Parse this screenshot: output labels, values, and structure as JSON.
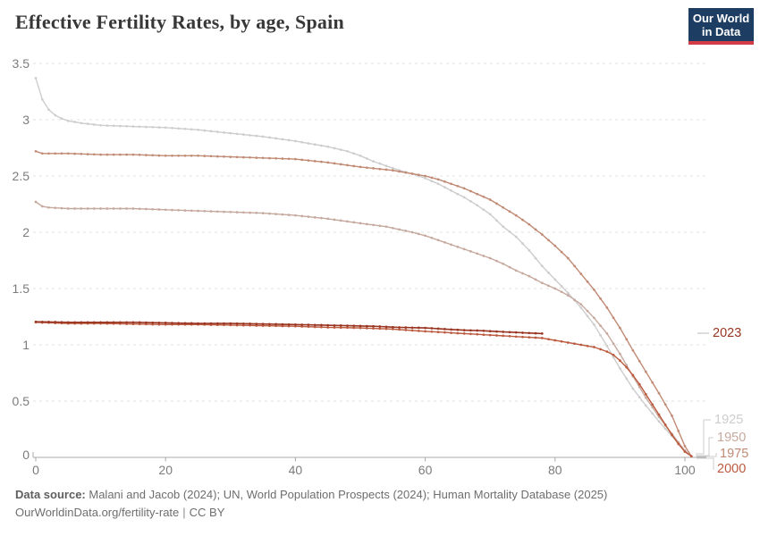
{
  "header": {
    "logo": {
      "line1": "Our World",
      "line2": "in Data"
    }
  },
  "chart_data": {
    "type": "line",
    "title": "Effective Fertility Rates, by age, Spain",
    "xlabel": "",
    "ylabel": "",
    "xlim": [
      0,
      103
    ],
    "ylim": [
      0,
      3.5
    ],
    "x_ticks": [
      0,
      20,
      40,
      60,
      80,
      100
    ],
    "y_ticks": [
      0,
      0.5,
      1,
      1.5,
      2,
      2.5,
      3,
      3.5
    ],
    "grid": "horizontal-dashed",
    "legend_position": "line-end-labels-right",
    "series": [
      {
        "name": "1925",
        "color": "#cdcdcd",
        "points": [
          [
            0,
            3.37
          ],
          [
            1,
            3.18
          ],
          [
            2,
            3.09
          ],
          [
            3,
            3.04
          ],
          [
            4,
            3.01
          ],
          [
            5,
            2.99
          ],
          [
            7,
            2.97
          ],
          [
            10,
            2.95
          ],
          [
            15,
            2.94
          ],
          [
            20,
            2.93
          ],
          [
            25,
            2.91
          ],
          [
            30,
            2.88
          ],
          [
            35,
            2.85
          ],
          [
            40,
            2.81
          ],
          [
            45,
            2.76
          ],
          [
            48,
            2.72
          ],
          [
            50,
            2.68
          ],
          [
            52,
            2.63
          ],
          [
            54,
            2.59
          ],
          [
            56,
            2.55
          ],
          [
            58,
            2.52
          ],
          [
            60,
            2.48
          ],
          [
            62,
            2.43
          ],
          [
            64,
            2.37
          ],
          [
            66,
            2.31
          ],
          [
            68,
            2.24
          ],
          [
            70,
            2.16
          ],
          [
            72,
            2.05
          ],
          [
            74,
            1.96
          ],
          [
            76,
            1.84
          ],
          [
            78,
            1.7
          ],
          [
            80,
            1.58
          ],
          [
            82,
            1.46
          ],
          [
            84,
            1.33
          ],
          [
            86,
            1.18
          ],
          [
            88,
            0.99
          ],
          [
            90,
            0.79
          ],
          [
            92,
            0.61
          ],
          [
            94,
            0.46
          ],
          [
            96,
            0.32
          ],
          [
            98,
            0.19
          ],
          [
            100,
            0.06
          ],
          [
            101,
            0.01
          ]
        ]
      },
      {
        "name": "1950",
        "color": "#c6a99e",
        "points": [
          [
            0,
            2.27
          ],
          [
            1,
            2.23
          ],
          [
            2,
            2.22
          ],
          [
            5,
            2.21
          ],
          [
            10,
            2.21
          ],
          [
            15,
            2.21
          ],
          [
            20,
            2.2
          ],
          [
            25,
            2.19
          ],
          [
            30,
            2.18
          ],
          [
            35,
            2.17
          ],
          [
            40,
            2.15
          ],
          [
            45,
            2.12
          ],
          [
            50,
            2.08
          ],
          [
            54,
            2.05
          ],
          [
            58,
            2.0
          ],
          [
            60,
            1.97
          ],
          [
            63,
            1.91
          ],
          [
            66,
            1.85
          ],
          [
            68,
            1.81
          ],
          [
            70,
            1.77
          ],
          [
            72,
            1.72
          ],
          [
            74,
            1.66
          ],
          [
            76,
            1.61
          ],
          [
            78,
            1.55
          ],
          [
            80,
            1.5
          ],
          [
            82,
            1.44
          ],
          [
            84,
            1.36
          ],
          [
            86,
            1.24
          ],
          [
            88,
            1.1
          ],
          [
            90,
            0.92
          ],
          [
            92,
            0.72
          ],
          [
            94,
            0.53
          ],
          [
            96,
            0.36
          ],
          [
            98,
            0.21
          ],
          [
            100,
            0.06
          ],
          [
            101,
            0.01
          ]
        ]
      },
      {
        "name": "1975",
        "color": "#c08a74",
        "points": [
          [
            0,
            2.72
          ],
          [
            1,
            2.7
          ],
          [
            3,
            2.7
          ],
          [
            5,
            2.7
          ],
          [
            10,
            2.69
          ],
          [
            15,
            2.69
          ],
          [
            20,
            2.68
          ],
          [
            25,
            2.68
          ],
          [
            30,
            2.67
          ],
          [
            35,
            2.66
          ],
          [
            40,
            2.65
          ],
          [
            45,
            2.62
          ],
          [
            50,
            2.58
          ],
          [
            55,
            2.55
          ],
          [
            58,
            2.52
          ],
          [
            60,
            2.5
          ],
          [
            62,
            2.47
          ],
          [
            64,
            2.43
          ],
          [
            66,
            2.39
          ],
          [
            68,
            2.34
          ],
          [
            70,
            2.29
          ],
          [
            72,
            2.22
          ],
          [
            74,
            2.15
          ],
          [
            76,
            2.07
          ],
          [
            78,
            1.98
          ],
          [
            80,
            1.88
          ],
          [
            82,
            1.77
          ],
          [
            84,
            1.63
          ],
          [
            86,
            1.49
          ],
          [
            88,
            1.33
          ],
          [
            90,
            1.15
          ],
          [
            92,
            0.95
          ],
          [
            94,
            0.76
          ],
          [
            96,
            0.57
          ],
          [
            98,
            0.37
          ],
          [
            100,
            0.1
          ],
          [
            101,
            0.01
          ]
        ]
      },
      {
        "name": "2000",
        "color": "#bb5a3e",
        "points": [
          [
            0,
            1.2
          ],
          [
            5,
            1.19
          ],
          [
            10,
            1.19
          ],
          [
            15,
            1.185
          ],
          [
            20,
            1.18
          ],
          [
            25,
            1.18
          ],
          [
            30,
            1.175
          ],
          [
            35,
            1.17
          ],
          [
            40,
            1.165
          ],
          [
            45,
            1.155
          ],
          [
            50,
            1.15
          ],
          [
            55,
            1.14
          ],
          [
            60,
            1.12
          ],
          [
            63,
            1.11
          ],
          [
            66,
            1.1
          ],
          [
            69,
            1.09
          ],
          [
            72,
            1.08
          ],
          [
            75,
            1.07
          ],
          [
            78,
            1.06
          ],
          [
            80,
            1.04
          ],
          [
            82,
            1.02
          ],
          [
            84,
            1.0
          ],
          [
            86,
            0.98
          ],
          [
            88,
            0.94
          ],
          [
            89,
            0.91
          ],
          [
            90,
            0.86
          ],
          [
            91,
            0.8
          ],
          [
            92,
            0.73
          ],
          [
            93,
            0.65
          ],
          [
            94,
            0.56
          ],
          [
            95,
            0.47
          ],
          [
            96,
            0.38
          ],
          [
            97,
            0.29
          ],
          [
            98,
            0.2
          ],
          [
            99,
            0.12
          ],
          [
            100,
            0.05
          ],
          [
            101,
            0.01
          ]
        ]
      },
      {
        "name": "2023",
        "color": "#9a3522",
        "points": [
          [
            0,
            1.205
          ],
          [
            5,
            1.2
          ],
          [
            10,
            1.2
          ],
          [
            15,
            1.2
          ],
          [
            20,
            1.195
          ],
          [
            25,
            1.19
          ],
          [
            30,
            1.19
          ],
          [
            35,
            1.185
          ],
          [
            40,
            1.18
          ],
          [
            44,
            1.175
          ],
          [
            48,
            1.17
          ],
          [
            52,
            1.165
          ],
          [
            56,
            1.155
          ],
          [
            60,
            1.15
          ],
          [
            63,
            1.14
          ],
          [
            66,
            1.13
          ],
          [
            69,
            1.125
          ],
          [
            72,
            1.115
          ],
          [
            74,
            1.11
          ],
          [
            76,
            1.105
          ],
          [
            78,
            1.1
          ]
        ]
      }
    ]
  },
  "colors": {
    "background": "#ffffff",
    "grid": "#e2e2e2",
    "axis": "#a8a8a8",
    "tick_label": "#7c7c7c",
    "title": "#383838",
    "footer": "#6e6e6e",
    "logo_bg": "#1d3d63",
    "logo_accent": "#d23c47",
    "connector": "#cdcdcd"
  },
  "footer": {
    "source_label": "Data source:",
    "source_text": "Malani and Jacob (2024); UN, World Population Prospects (2024); Human Mortality Database (2025)",
    "link": "OurWorldinData.org/fertility-rate",
    "separator": "|",
    "license": "CC BY"
  }
}
